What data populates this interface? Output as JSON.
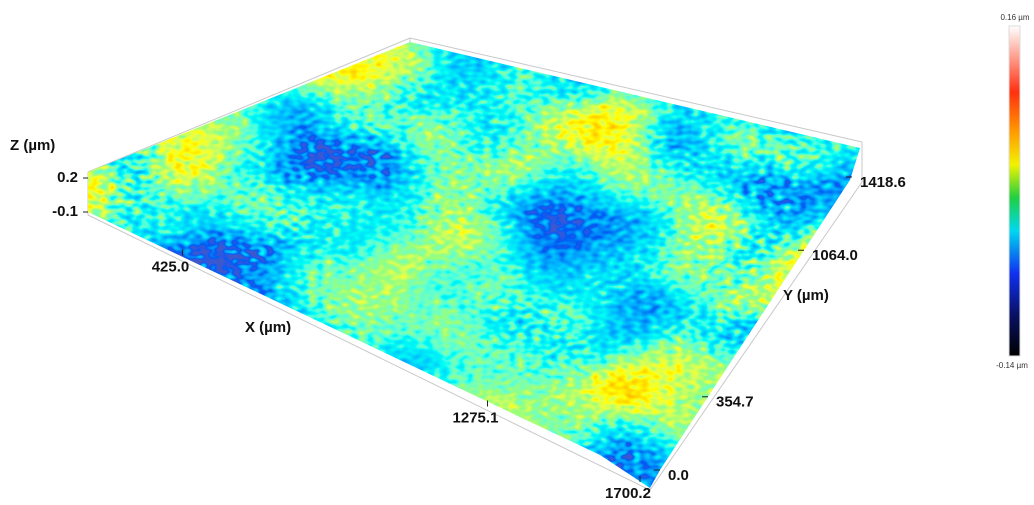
{
  "chart_data": {
    "type": "surface",
    "x_label": "X (µm)",
    "y_label": "Y (µm)",
    "z_label": "Z (µm)",
    "xlim": [
      0,
      1700.2
    ],
    "xticks": [
      {
        "value": 425,
        "label": "425.0"
      },
      {
        "value": 1275.1,
        "label": "1275.1"
      },
      {
        "value": 1700.2,
        "label": "1700.2"
      }
    ],
    "ylim": [
      0,
      1418.6
    ],
    "yticks": [
      {
        "value": 0,
        "label": "0.0"
      },
      {
        "value": 354.7,
        "label": "354.7"
      },
      {
        "value": 1064,
        "label": "1064.0"
      },
      {
        "value": 1418.6,
        "label": "1418.6"
      }
    ],
    "zlim": [
      -0.1,
      0.2
    ],
    "zticks": [
      -0.1,
      0.2
    ],
    "colorbar": {
      "min": {
        "value": -0.14,
        "label": "-0.14 µm"
      },
      "max": {
        "value": 0.16,
        "label": "0.16 µm"
      }
    }
  }
}
